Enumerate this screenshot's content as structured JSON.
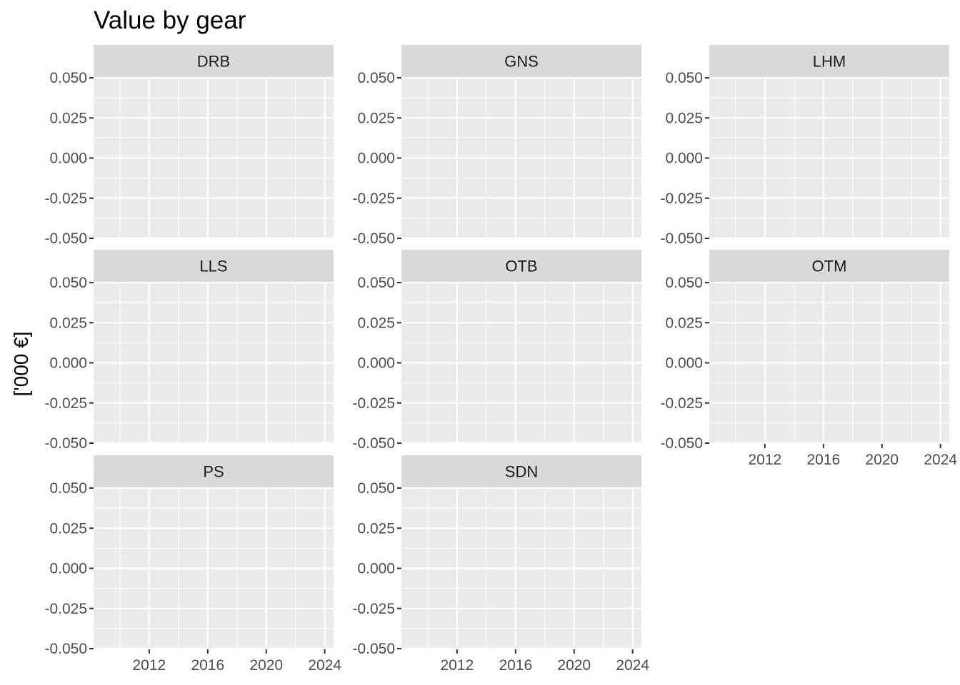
{
  "chart_data": {
    "type": "line",
    "title": "Value by gear",
    "xlabel": "",
    "ylabel": "['000 €]",
    "facets": [
      "DRB",
      "GNS",
      "LHM",
      "LLS",
      "OTB",
      "OTM",
      "PS",
      "SDN"
    ],
    "ylim": [
      -0.05,
      0.05
    ],
    "yticks": [
      -0.05,
      -0.025,
      0,
      0.025,
      0.05
    ],
    "ytick_labels": [
      "-0.050",
      "-0.025",
      "0.000",
      "0.025",
      "0.050"
    ],
    "xlim": [
      2008.2,
      2024.6
    ],
    "xticks": [
      2012,
      2016,
      2020,
      2024
    ],
    "xtick_labels": [
      "2012",
      "2016",
      "2020",
      "2024"
    ],
    "x_minor_gridlines": [
      2010,
      2014,
      2018,
      2022
    ],
    "series": [],
    "grid": true,
    "panel_background": "#ebebeb",
    "strip_background": "#d9d9d9",
    "gridline_color": "#ffffff"
  }
}
